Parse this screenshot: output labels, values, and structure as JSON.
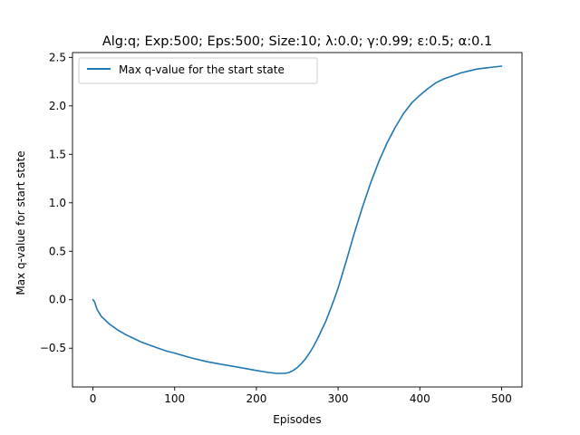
{
  "chart_data": {
    "type": "line",
    "title": "Alg:q; Exp:500; Eps:500; Size:10; λ:0.0; γ:0.99; ε:0.5; α:0.1",
    "xlabel": "Episodes",
    "ylabel": "Max q-value for start state",
    "xlim": [
      -25,
      525
    ],
    "ylim": [
      -0.9,
      2.55
    ],
    "xticks": [
      0,
      100,
      200,
      300,
      400,
      500
    ],
    "yticks": [
      -0.5,
      0.0,
      0.5,
      1.0,
      1.5,
      2.0,
      2.5
    ],
    "xtick_labels": [
      "0",
      "100",
      "200",
      "300",
      "400",
      "500"
    ],
    "ytick_labels": [
      "−0.5",
      "0.0",
      "0.5",
      "1.0",
      "1.5",
      "2.0",
      "2.5"
    ],
    "grid": false,
    "legend_position": "top-left",
    "series": [
      {
        "name": "Max q-value for the start state",
        "color": "#1f77b4",
        "x": [
          0,
          2,
          5,
          10,
          15,
          20,
          30,
          40,
          50,
          60,
          70,
          80,
          90,
          100,
          120,
          140,
          160,
          180,
          200,
          215,
          225,
          235,
          240,
          245,
          250,
          255,
          260,
          265,
          270,
          275,
          280,
          285,
          290,
          295,
          300,
          310,
          320,
          330,
          340,
          350,
          360,
          370,
          380,
          390,
          400,
          410,
          420,
          430,
          440,
          450,
          460,
          470,
          480,
          490,
          500
        ],
        "y": [
          0.0,
          -0.02,
          -0.1,
          -0.17,
          -0.21,
          -0.25,
          -0.31,
          -0.36,
          -0.4,
          -0.44,
          -0.47,
          -0.5,
          -0.53,
          -0.55,
          -0.6,
          -0.64,
          -0.67,
          -0.7,
          -0.73,
          -0.75,
          -0.76,
          -0.76,
          -0.75,
          -0.73,
          -0.7,
          -0.66,
          -0.61,
          -0.55,
          -0.48,
          -0.4,
          -0.31,
          -0.22,
          -0.11,
          0.0,
          0.12,
          0.4,
          0.69,
          0.96,
          1.21,
          1.43,
          1.62,
          1.78,
          1.92,
          2.03,
          2.11,
          2.18,
          2.24,
          2.28,
          2.31,
          2.34,
          2.36,
          2.38,
          2.39,
          2.4,
          2.41
        ]
      }
    ]
  }
}
